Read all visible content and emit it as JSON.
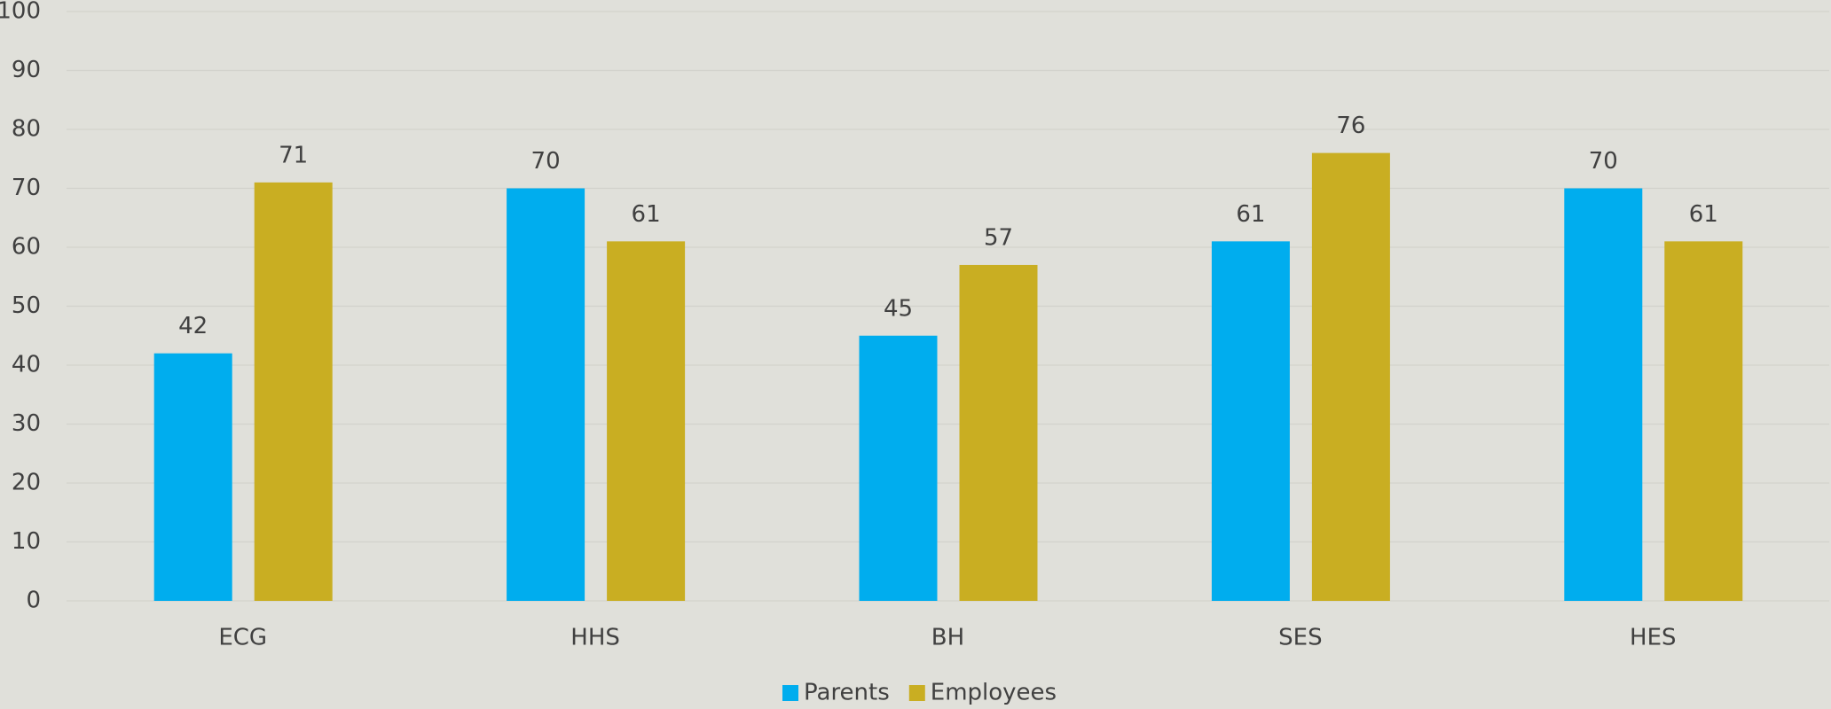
{
  "chart_data": {
    "type": "bar",
    "categories": [
      "ECG",
      "HHS",
      "BH",
      "SES",
      "HES"
    ],
    "series": [
      {
        "name": "Parents",
        "color": "#00adee",
        "values": [
          42,
          70,
          45,
          61,
          70
        ]
      },
      {
        "name": "Employees",
        "color": "#c9ae22",
        "values": [
          71,
          61,
          57,
          76,
          61
        ]
      }
    ],
    "ylim": [
      0,
      100
    ],
    "yticks": [
      0,
      10,
      20,
      30,
      40,
      50,
      60,
      70,
      80,
      90,
      100
    ],
    "grid": true,
    "legend": "bottom"
  }
}
